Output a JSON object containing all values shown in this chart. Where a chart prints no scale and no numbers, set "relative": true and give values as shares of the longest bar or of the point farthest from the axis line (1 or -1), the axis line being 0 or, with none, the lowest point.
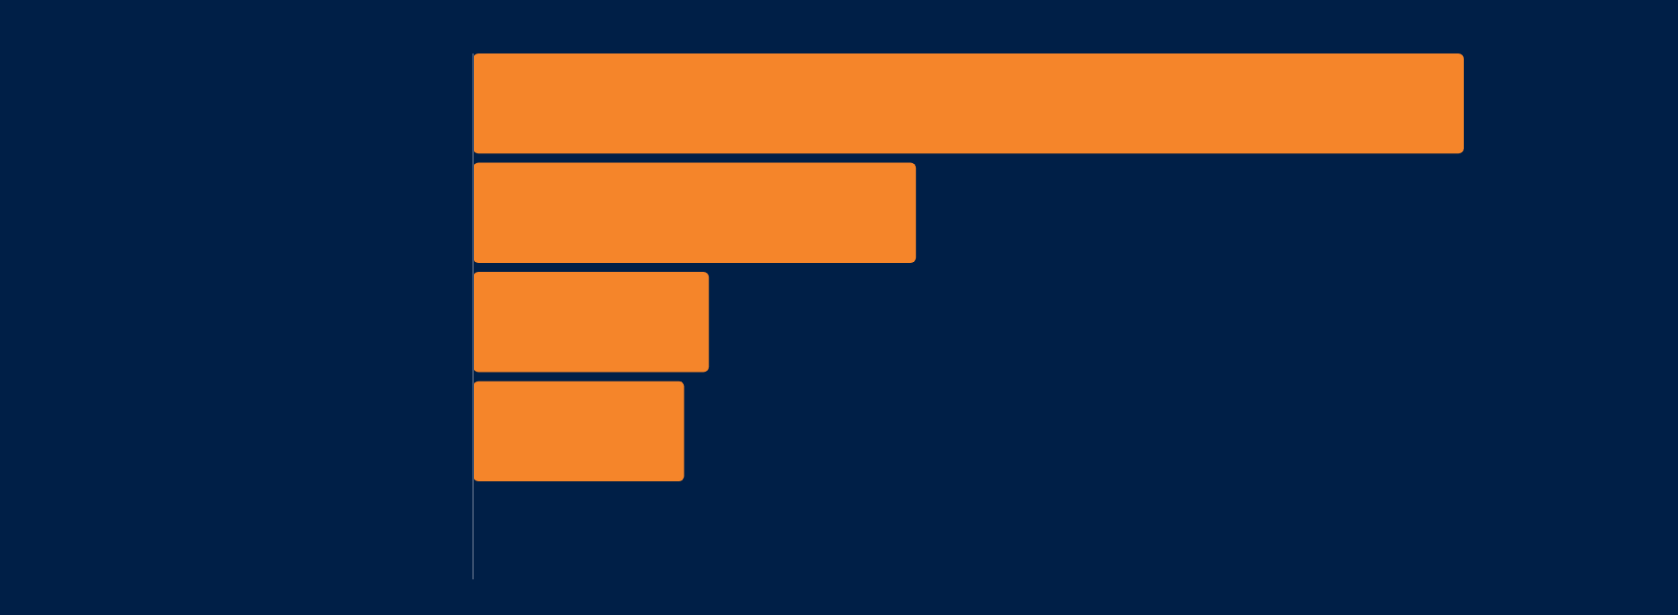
{
  "chart_data": {
    "type": "bar",
    "orientation": "horizontal",
    "relative": true,
    "categories": [
      null,
      null,
      null,
      null
    ],
    "values": [
      1,
      0.447,
      0.238,
      0.213
    ],
    "color": "#f5852a"
  }
}
